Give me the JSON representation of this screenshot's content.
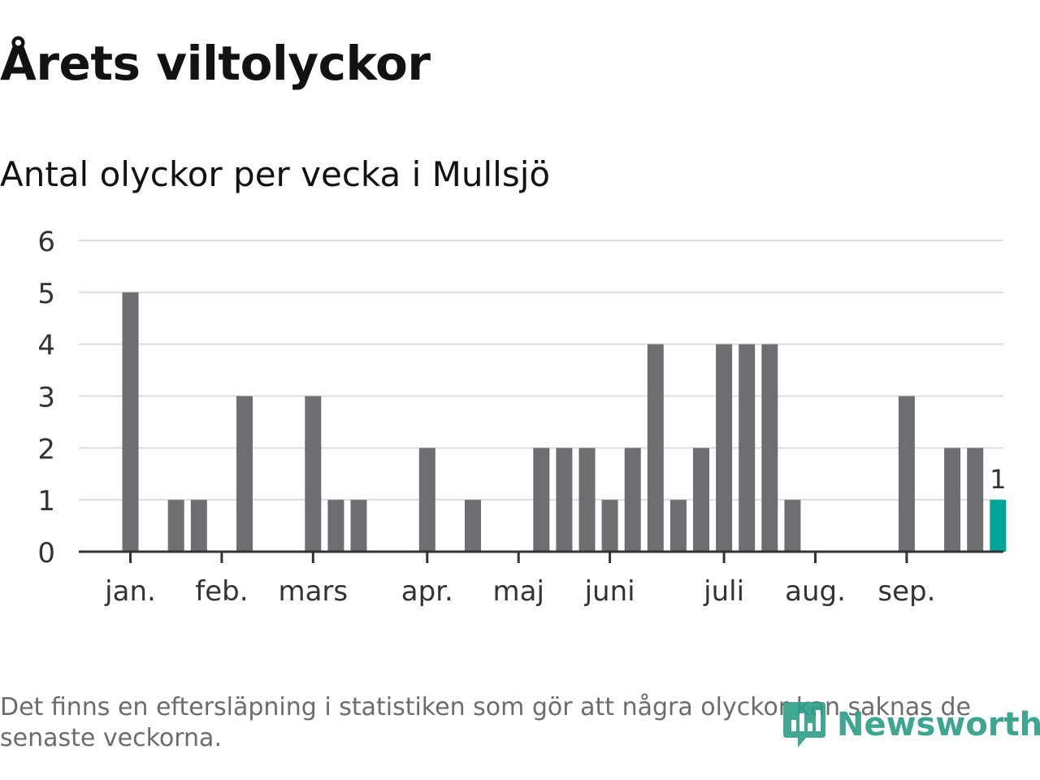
{
  "title": "Årets viltolyckor",
  "subtitle": "Antal olyckor per vecka i Mullsjö",
  "footnote": "Det finns en eftersläpning i statistiken som gör att några olyckor kan saknas de senaste veckorna.",
  "logo": {
    "text": "Newsworthy",
    "icon": "newsworthy-logo-icon",
    "color": "#2e9e87"
  },
  "colors": {
    "bar": "#6e6d72",
    "highlight": "#00a598",
    "grid": "#dcdcdc",
    "axis": "#333333",
    "text": "#333333"
  },
  "chart_data": {
    "type": "bar",
    "title": "Antal olyckor per vecka i Mullsjö",
    "xlabel": "",
    "ylabel": "",
    "ylim": [
      0,
      6
    ],
    "yticks": [
      "0",
      "1",
      "2",
      "3",
      "4",
      "5",
      "6"
    ],
    "grid": true,
    "weeks": [
      1,
      2,
      3,
      4,
      5,
      6,
      7,
      8,
      9,
      10,
      11,
      12,
      13,
      14,
      15,
      16,
      17,
      18,
      19,
      20,
      21,
      22,
      23,
      24,
      25,
      26,
      27,
      28,
      29,
      30,
      31,
      32,
      33,
      34,
      35,
      36,
      37,
      38
    ],
    "values": [
      5,
      0,
      1,
      1,
      0,
      3,
      0,
      0,
      3,
      1,
      1,
      0,
      0,
      2,
      0,
      1,
      0,
      0,
      2,
      2,
      2,
      1,
      2,
      4,
      1,
      2,
      4,
      4,
      4,
      1,
      0,
      0,
      0,
      0,
      3,
      0,
      2,
      2
    ],
    "highlight": {
      "week": 39,
      "value": 1,
      "label": "1"
    },
    "month_labels": [
      {
        "label": "jan.",
        "week": 1
      },
      {
        "label": "feb.",
        "week": 5
      },
      {
        "label": "mars",
        "week": 9
      },
      {
        "label": "apr.",
        "week": 14
      },
      {
        "label": "maj",
        "week": 18
      },
      {
        "label": "juni",
        "week": 22
      },
      {
        "label": "juli",
        "week": 27
      },
      {
        "label": "aug.",
        "week": 31
      },
      {
        "label": "sep.",
        "week": 35
      }
    ]
  }
}
